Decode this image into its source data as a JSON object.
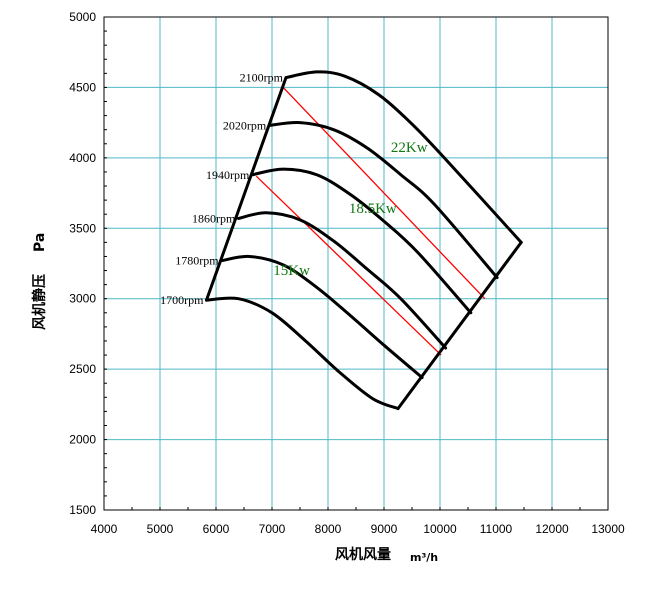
{
  "chart_data": {
    "type": "line",
    "title": "",
    "xlabel": "风机风量",
    "xunit": "m³/h",
    "ylabel": "风机静压",
    "yunit": "Pa",
    "xlim": [
      4000,
      13000
    ],
    "ylim": [
      1500,
      5000
    ],
    "xticks": [
      4000,
      5000,
      6000,
      7000,
      8000,
      9000,
      10000,
      11000,
      12000,
      13000
    ],
    "yticks": [
      1500,
      2000,
      2500,
      3000,
      3500,
      4000,
      4500,
      5000
    ],
    "grid": true,
    "colors": {
      "grid": "#4fb9c6",
      "curve": "#000000",
      "power_line": "#ff0000",
      "power_text": "#117711"
    },
    "series": [
      {
        "name": "1700rpm",
        "x": [
          5830,
          6400,
          7000,
          7600,
          8200,
          8800,
          9250
        ],
        "y": [
          2990,
          3000,
          2900,
          2700,
          2480,
          2290,
          2220
        ]
      },
      {
        "name": "1780rpm",
        "x": [
          6100,
          6600,
          7200,
          7800,
          8400,
          9000,
          9680
        ],
        "y": [
          3270,
          3300,
          3240,
          3080,
          2880,
          2670,
          2440
        ]
      },
      {
        "name": "1860rpm",
        "x": [
          6400,
          6900,
          7500,
          8100,
          8700,
          9300,
          10100
        ],
        "y": [
          3570,
          3610,
          3560,
          3410,
          3210,
          3000,
          2650
        ]
      },
      {
        "name": "1940rpm",
        "x": [
          6650,
          7200,
          7800,
          8400,
          9000,
          9600,
          10550
        ],
        "y": [
          3880,
          3920,
          3880,
          3740,
          3550,
          3330,
          2900
        ]
      },
      {
        "name": "2020rpm",
        "x": [
          6950,
          7500,
          8100,
          8700,
          9300,
          9900,
          11020
        ],
        "y": [
          4230,
          4250,
          4200,
          4070,
          3880,
          3670,
          3150
        ]
      },
      {
        "name": "2100rpm",
        "x": [
          7250,
          7800,
          8300,
          8900,
          9500,
          10100,
          11450
        ],
        "y": [
          4570,
          4610,
          4580,
          4450,
          4240,
          3990,
          3400
        ]
      }
    ],
    "envelope": {
      "left_edge": {
        "x": [
          5830,
          7250
        ],
        "y": [
          2990,
          4570
        ]
      },
      "right_edge": {
        "x": [
          9250,
          11450
        ],
        "y": [
          2220,
          3400
        ]
      }
    },
    "power_lines": [
      {
        "x": [
          6720,
          10020
        ],
        "y": [
          3870,
          2600
        ]
      },
      {
        "x": [
          7200,
          10800
        ],
        "y": [
          4500,
          3000
        ]
      }
    ],
    "rpm_labels": [
      "1700rpm",
      "1780rpm",
      "1860rpm",
      "1940rpm",
      "2020rpm",
      "2100rpm"
    ],
    "annotations": [
      {
        "text": "15Kw",
        "x": 7350,
        "y": 3170
      },
      {
        "text": "18.5Kw",
        "x": 8800,
        "y": 3610
      },
      {
        "text": "22Kw",
        "x": 9450,
        "y": 4040
      }
    ]
  }
}
